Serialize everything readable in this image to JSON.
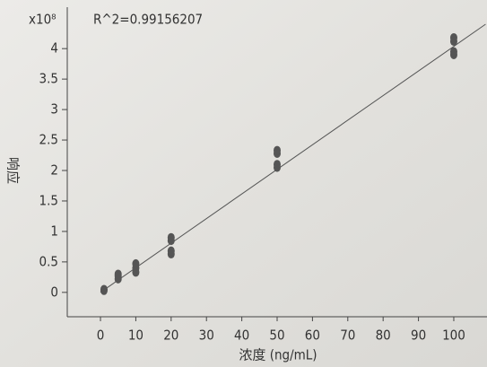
{
  "chart_data": {
    "type": "scatter",
    "annotation": "R^2=0.99156207",
    "y_multiplier": "x10⁸",
    "xlabel": "浓度 (ng/mL)",
    "ylabel": "响应",
    "xlim": [
      -9.4,
      109.4
    ],
    "ylim": [
      -0.4,
      4.68
    ],
    "xticks": [
      0,
      10,
      20,
      30,
      40,
      50,
      60,
      70,
      80,
      90,
      100
    ],
    "yticks": [
      0,
      0.5,
      1,
      1.5,
      2,
      2.5,
      3,
      3.5,
      4
    ],
    "series": [
      {
        "color": "#555555",
        "x": [
          1,
          1,
          5,
          5,
          5,
          10,
          10,
          10,
          20,
          20,
          20,
          20,
          50,
          50,
          50,
          50,
          100,
          100,
          100,
          100
        ],
        "values": [
          0.03,
          0.05,
          0.22,
          0.27,
          0.3,
          0.33,
          0.4,
          0.47,
          0.63,
          0.68,
          0.85,
          0.9,
          2.05,
          2.1,
          2.28,
          2.33,
          3.9,
          3.95,
          4.12,
          4.18
        ]
      }
    ],
    "fit_line": {
      "color": "#555555",
      "x": [
        0,
        109
      ],
      "values": [
        0.0,
        4.4
      ]
    }
  }
}
